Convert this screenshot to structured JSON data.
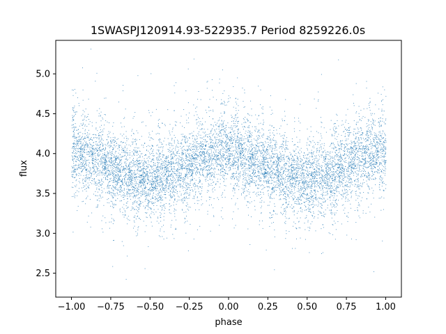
{
  "chart_data": {
    "type": "scatter",
    "title": "1SWASPJ120914.93-522935.7 Period 8259226.0s",
    "xlabel": "phase",
    "ylabel": "flux",
    "xlim": [
      -1.1,
      1.1
    ],
    "ylim": [
      2.2,
      5.42
    ],
    "x_ticks": [
      -1.0,
      -0.75,
      -0.5,
      -0.25,
      0.0,
      0.25,
      0.5,
      0.75,
      1.0
    ],
    "x_tick_labels": [
      "−1.00",
      "−0.75",
      "−0.50",
      "−0.25",
      "0.00",
      "0.25",
      "0.50",
      "0.75",
      "1.00"
    ],
    "y_ticks": [
      2.5,
      3.0,
      3.5,
      4.0,
      4.5,
      5.0
    ],
    "y_tick_labels": [
      "2.5",
      "3.0",
      "3.5",
      "4.0",
      "4.5",
      "5.0"
    ],
    "grid": false,
    "legend": false,
    "point_color": "#1f77b4",
    "series": [
      {
        "phase": [
          -1.0,
          -0.9,
          -0.8,
          -0.7,
          -0.6,
          -0.5,
          -0.4,
          -0.3,
          -0.2,
          -0.1,
          0.0,
          0.1,
          0.2,
          0.3,
          0.4,
          0.5,
          0.6,
          0.7,
          0.8,
          0.9,
          1.0
        ],
        "mean_flux": [
          4.05,
          3.98,
          3.88,
          3.78,
          3.7,
          3.66,
          3.72,
          3.82,
          3.92,
          4.0,
          4.05,
          3.98,
          3.88,
          3.78,
          3.7,
          3.66,
          3.72,
          3.82,
          3.92,
          4.0,
          4.05
        ],
        "flux_spread": 0.32,
        "flux_min": 2.35,
        "flux_max": 5.32
      }
    ]
  }
}
